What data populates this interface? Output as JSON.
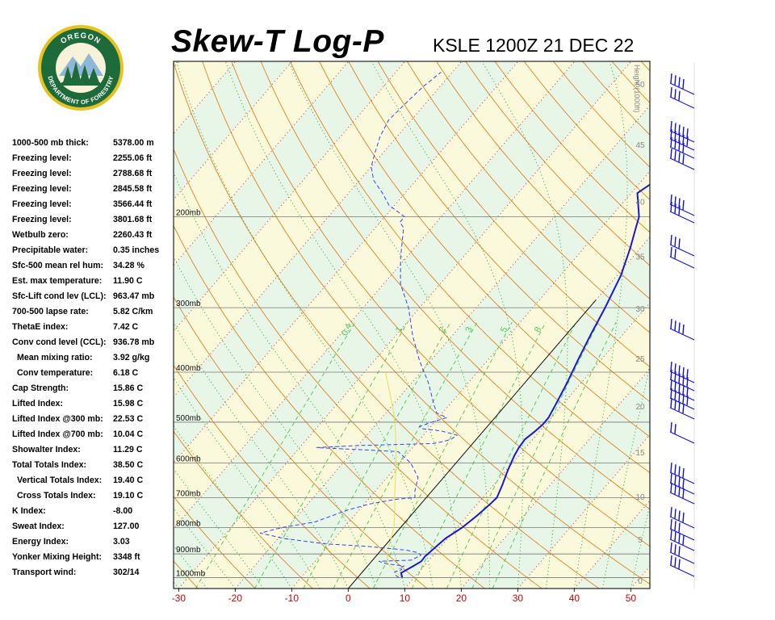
{
  "header": {
    "title": "Skew-T Log-P",
    "station": "KSLE 1200Z 21 DEC 22"
  },
  "logo": {
    "text_top": "OREGON",
    "text_bottom": "DEPARTMENT OF FORESTRY"
  },
  "indices": [
    {
      "label": "1000-500 mb thick:",
      "value": "5378.00 m",
      "indent": false
    },
    {
      "label": "Freezing level:",
      "value": "2255.06 ft",
      "indent": false
    },
    {
      "label": "Freezing level:",
      "value": "2788.68 ft",
      "indent": false
    },
    {
      "label": "Freezing level:",
      "value": "2845.58 ft",
      "indent": false
    },
    {
      "label": "Freezing level:",
      "value": "3566.44 ft",
      "indent": false
    },
    {
      "label": "Freezing level:",
      "value": "3801.68 ft",
      "indent": false
    },
    {
      "label": "Wetbulb zero:",
      "value": "2260.43 ft",
      "indent": false
    },
    {
      "label": "Precipitable water:",
      "value": "0.35 inches",
      "indent": false
    },
    {
      "label": "Sfc-500 mean rel hum:",
      "value": "34.28 %",
      "indent": false
    },
    {
      "label": "Est. max temperature:",
      "value": "11.90 C",
      "indent": false
    },
    {
      "label": "Sfc-Lift cond lev (LCL):",
      "value": "963.47 mb",
      "indent": false
    },
    {
      "label": "700-500 lapse rate:",
      "value": "5.82 C/km",
      "indent": false
    },
    {
      "label": "ThetaE index:",
      "value": "7.42 C",
      "indent": false
    },
    {
      "label": "Conv cond level (CCL):",
      "value": "936.78 mb",
      "indent": false
    },
    {
      "label": "Mean mixing ratio:",
      "value": "3.92 g/kg",
      "indent": true
    },
    {
      "label": "Conv temperature:",
      "value": "6.18 C",
      "indent": true
    },
    {
      "label": "Cap Strength:",
      "value": "15.86 C",
      "indent": false
    },
    {
      "label": "Lifted Index:",
      "value": "15.98 C",
      "indent": false
    },
    {
      "label": "Lifted Index @300 mb:",
      "value": "22.53 C",
      "indent": false
    },
    {
      "label": "Lifted Index @700 mb:",
      "value": "10.04 C",
      "indent": false
    },
    {
      "label": "Showalter Index:",
      "value": "11.29 C",
      "indent": false
    },
    {
      "label": "Total Totals Index:",
      "value": "38.50 C",
      "indent": false
    },
    {
      "label": "Vertical Totals Index:",
      "value": "19.40 C",
      "indent": true
    },
    {
      "label": "Cross Totals Index:",
      "value": "19.10 C",
      "indent": true
    },
    {
      "label": "K Index:",
      "value": "-8.00",
      "indent": false
    },
    {
      "label": "Sweat Index:",
      "value": "127.00",
      "indent": false
    },
    {
      "label": "Energy Index:",
      "value": "3.03",
      "indent": false
    },
    {
      "label": "Yonker Mixing Height:",
      "value": "3348 ft",
      "indent": false
    },
    {
      "label": "Transport wind:",
      "value": "302/14",
      "indent": false
    }
  ],
  "colors": {
    "temperature": "#1a1acc",
    "dewpoint": "#3344ee",
    "parcel": "#e8e060",
    "dry_adiabat": "#e0821c",
    "moist_adiabat": "#33aa33",
    "isotherm_label": "#cc0000",
    "mixing_ratio": "#55cc55",
    "isobar": "#777777"
  },
  "chart_data": {
    "type": "line",
    "x_tick_labels": [
      "-30",
      "-20",
      "-10",
      "0",
      "10",
      "20",
      "30",
      "40",
      "50"
    ],
    "x_ticks": [
      -30,
      -20,
      -10,
      0,
      10,
      20,
      30,
      40,
      50
    ],
    "xlim": [
      -33,
      52
    ],
    "y_scale": "log-pressure",
    "ylim_mb": [
      1050,
      100
    ],
    "pressure_levels": [
      {
        "p": 200,
        "label": "200mb"
      },
      {
        "p": 300,
        "label": "300mb"
      },
      {
        "p": 400,
        "label": "400mb"
      },
      {
        "p": 500,
        "label": "500mb"
      },
      {
        "p": 600,
        "label": "600mb"
      },
      {
        "p": 700,
        "label": "700mb"
      },
      {
        "p": 800,
        "label": "800mb"
      },
      {
        "p": 900,
        "label": "900mb"
      },
      {
        "p": 1000,
        "label": "1000mb"
      }
    ],
    "height_axis": {
      "title": "Height (1000ft)",
      "ticks": [
        "0",
        "5",
        "10",
        "15",
        "20",
        "25",
        "30",
        "35",
        "40",
        "45",
        "50"
      ],
      "values_kft": [
        0,
        5,
        10,
        15,
        20,
        25,
        30,
        35,
        40,
        45,
        50
      ]
    },
    "mixing_ratio_labels": [
      {
        "value": 0.4,
        "label": "0.4"
      },
      {
        "value": 1,
        "label": "1"
      },
      {
        "value": 2,
        "label": "2"
      },
      {
        "value": 3,
        "label": "3"
      },
      {
        "value": 5,
        "label": "5"
      },
      {
        "value": 8,
        "label": "8"
      }
    ],
    "series": [
      {
        "kind": "temperature",
        "points": [
          [
            1000,
            7.9
          ],
          [
            980,
            7.0
          ],
          [
            950,
            8.1
          ],
          [
            930,
            8.8
          ],
          [
            910,
            8.7
          ],
          [
            895,
            8.9
          ],
          [
            870,
            9.2
          ],
          [
            840,
            9.6
          ],
          [
            800,
            10.9
          ],
          [
            760,
            11.7
          ],
          [
            720,
            12.3
          ],
          [
            700,
            12.5
          ],
          [
            660,
            11.5
          ],
          [
            620,
            10.3
          ],
          [
            580,
            9.2
          ],
          [
            560,
            8.8
          ],
          [
            540,
            8.6
          ],
          [
            520,
            9.2
          ],
          [
            505,
            9.5
          ],
          [
            490,
            9.5
          ],
          [
            460,
            8.7
          ],
          [
            420,
            7.5
          ],
          [
            380,
            6.0
          ],
          [
            340,
            4.4
          ],
          [
            300,
            2.8
          ],
          [
            260,
            0.7
          ],
          [
            230,
            -1.8
          ],
          [
            210,
            -3.9
          ],
          [
            200,
            -5.0
          ],
          [
            190,
            -6.9
          ],
          [
            180,
            -8.9
          ],
          [
            160,
            -6.0
          ],
          [
            150,
            -5.1
          ],
          [
            140,
            -4.4
          ],
          [
            130,
            -3.7
          ],
          [
            120,
            -2.5
          ],
          [
            112,
            -1.4
          ],
          [
            105,
            -0.5
          ]
        ]
      },
      {
        "kind": "dewpoint",
        "points": [
          [
            1000,
            7.3
          ],
          [
            990,
            6.4
          ],
          [
            975,
            5.7
          ],
          [
            965,
            6.6
          ],
          [
            955,
            5.9
          ],
          [
            950,
            6.5
          ],
          [
            940,
            3.0
          ],
          [
            930,
            1.3
          ],
          [
            925,
            7.0
          ],
          [
            915,
            7.3
          ],
          [
            905,
            7.8
          ],
          [
            895,
            6.9
          ],
          [
            885,
            4.5
          ],
          [
            870,
            -3.0
          ],
          [
            860,
            -11.0
          ],
          [
            840,
            -19.0
          ],
          [
            820,
            -24.0
          ],
          [
            800,
            -21.0
          ],
          [
            780,
            -16.0
          ],
          [
            740,
            -12.0
          ],
          [
            720,
            -9.0
          ],
          [
            705,
            -5.0
          ],
          [
            700,
            -2.0
          ],
          [
            680,
            -3.0
          ],
          [
            640,
            -4.5
          ],
          [
            600,
            -8.0
          ],
          [
            570,
            -12.0
          ],
          [
            560,
            -27.0
          ],
          [
            555,
            -20.0
          ],
          [
            550,
            -7.0
          ],
          [
            545,
            -5.5
          ],
          [
            540,
            -4.5
          ],
          [
            530,
            -4.0
          ],
          [
            520,
            -7.5
          ],
          [
            515,
            -11.0
          ],
          [
            510,
            -12.0
          ],
          [
            500,
            -10.5
          ],
          [
            490,
            -8.5
          ],
          [
            480,
            -11.0
          ],
          [
            460,
            -13.0
          ],
          [
            420,
            -17.0
          ],
          [
            380,
            -22.0
          ],
          [
            340,
            -27.0
          ],
          [
            300,
            -32.0
          ],
          [
            270,
            -37.0
          ],
          [
            240,
            -41.0
          ],
          [
            210,
            -45.0
          ],
          [
            205,
            -46.5
          ],
          [
            200,
            -46.5
          ],
          [
            190,
            -51.0
          ],
          [
            180,
            -54.0
          ],
          [
            170,
            -57.5
          ],
          [
            160,
            -60.0
          ],
          [
            150,
            -61.5
          ],
          [
            140,
            -63.0
          ],
          [
            130,
            -64.0
          ],
          [
            120,
            -63.5
          ],
          [
            112,
            -63.0
          ],
          [
            105,
            -62.0
          ]
        ]
      },
      {
        "kind": "parcel",
        "points": [
          [
            1000,
            7.8
          ],
          [
            960,
            4.8
          ],
          [
            940,
            3.2
          ],
          [
            910,
            2.0
          ],
          [
            880,
            1.0
          ],
          [
            840,
            0.0
          ],
          [
            800,
            -1.2
          ],
          [
            760,
            -2.8
          ],
          [
            720,
            -4.6
          ],
          [
            700,
            -5.6
          ],
          [
            650,
            -8.0
          ],
          [
            600,
            -10.6
          ],
          [
            550,
            -13.6
          ],
          [
            520,
            -15.6
          ],
          [
            500,
            -17.0
          ],
          [
            480,
            -18.6
          ],
          [
            450,
            -21.3
          ],
          [
            420,
            -24.2
          ],
          [
            400,
            -26.3
          ]
        ]
      }
    ],
    "wind_column": "wind barbs at right, one per reported level (barbs drawn graphically)"
  }
}
